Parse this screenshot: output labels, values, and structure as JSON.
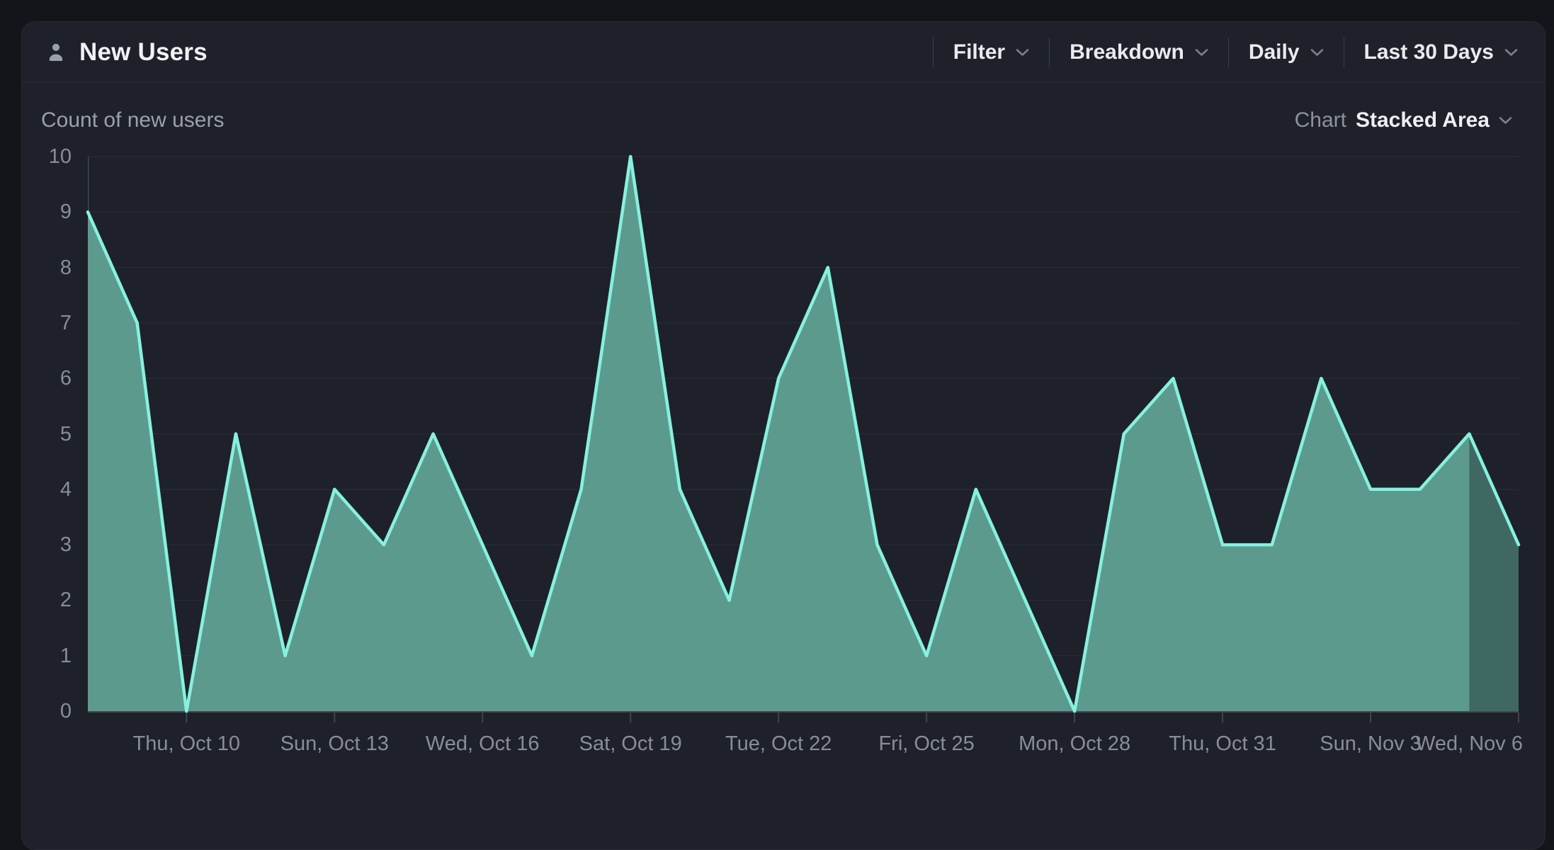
{
  "header": {
    "title": "New Users",
    "icon": "person-icon",
    "controls": [
      {
        "label": "Filter"
      },
      {
        "label": "Breakdown"
      },
      {
        "label": "Daily"
      },
      {
        "label": "Last 30 Days"
      }
    ]
  },
  "subheader": {
    "metric_label": "Count of new users",
    "chart_selector": {
      "label": "Chart",
      "value": "Stacked Area"
    }
  },
  "chart_data": {
    "type": "area",
    "title": "Count of new users",
    "series_name": "New Users",
    "x": [
      "Oct 8",
      "Oct 9",
      "Oct 10",
      "Oct 11",
      "Oct 12",
      "Oct 13",
      "Oct 14",
      "Oct 15",
      "Oct 16",
      "Oct 17",
      "Oct 18",
      "Oct 19",
      "Oct 20",
      "Oct 21",
      "Oct 22",
      "Oct 23",
      "Oct 24",
      "Oct 25",
      "Oct 26",
      "Oct 27",
      "Oct 28",
      "Oct 29",
      "Oct 30",
      "Oct 31",
      "Nov 1",
      "Nov 2",
      "Nov 3",
      "Nov 4",
      "Nov 5",
      "Nov 6"
    ],
    "values": [
      9,
      7,
      0,
      5,
      1,
      4,
      3,
      5,
      3,
      1,
      4,
      10,
      4,
      2,
      6,
      8,
      3,
      1,
      4,
      2,
      0,
      5,
      6,
      3,
      3,
      6,
      4,
      4,
      5,
      3
    ],
    "ylim": [
      0,
      10
    ],
    "y_ticks": [
      0,
      1,
      2,
      3,
      4,
      5,
      6,
      7,
      8,
      9,
      10
    ],
    "x_ticks": [
      {
        "index": 2,
        "label": "Thu, Oct 10"
      },
      {
        "index": 5,
        "label": "Sun, Oct 13"
      },
      {
        "index": 8,
        "label": "Wed, Oct 16"
      },
      {
        "index": 11,
        "label": "Sat, Oct 19"
      },
      {
        "index": 14,
        "label": "Tue, Oct 22"
      },
      {
        "index": 17,
        "label": "Fri, Oct 25"
      },
      {
        "index": 20,
        "label": "Mon, Oct 28"
      },
      {
        "index": 23,
        "label": "Thu, Oct 31"
      },
      {
        "index": 26,
        "label": "Sun, Nov 3"
      },
      {
        "index": 29,
        "label": "Wed, Nov 6"
      }
    ],
    "grid": "horizontal",
    "legend": "none",
    "incomplete_from_index": 28
  },
  "colors": {
    "page_bg": "#14151a",
    "card_bg": "#1e2129",
    "accent_line": "#86f1de",
    "area_fill": "#5d9a8e",
    "incomplete_overlay": "rgba(8,10,14,0.34)",
    "gridline": "#282b33",
    "axis_line": "#40444e",
    "text_primary": "#eef0f3",
    "text_muted": "#9ba0ab",
    "axis_label": "#888d98"
  }
}
